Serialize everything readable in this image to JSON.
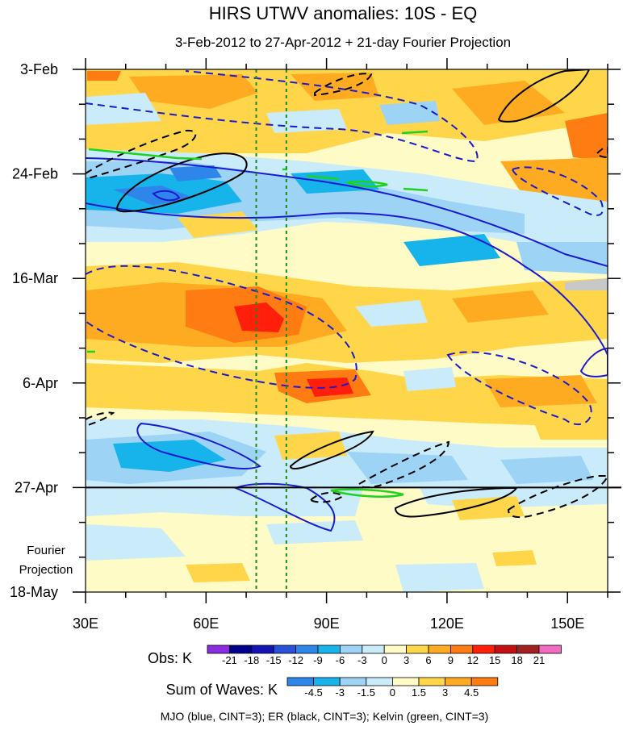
{
  "chart_data": {
    "type": "heatmap",
    "title": "HIRS UTWV anomalies: 10S - EQ",
    "subtitle": "3-Feb-2012 to 27-Apr-2012 + 21-day Fourier Projection",
    "x_axis": {
      "range": [
        30,
        160
      ],
      "major_ticks": [
        30,
        60,
        90,
        120,
        150
      ],
      "tick_labels": [
        "30E",
        "60E",
        "90E",
        "120E",
        "150E"
      ],
      "minor_step": 10
    },
    "y_axis": {
      "range_days": [
        0,
        105
      ],
      "reversed": true,
      "major_ticks_days": [
        0,
        21,
        42,
        63,
        84,
        105
      ],
      "tick_labels": [
        "3-Feb",
        "24-Feb",
        "16-Mar",
        "6-Apr",
        "27-Apr",
        "18-May"
      ],
      "minor_step_days": 7
    },
    "observation_end_label": "27-Apr",
    "projection_label": [
      "Fourier",
      "Projection"
    ],
    "reference_longitudes": [
      72.5,
      80
    ],
    "colorbars": [
      {
        "label": "Obs: K",
        "levels": [
          -21,
          -18,
          -15,
          -12,
          -9,
          -6,
          -3,
          0,
          3,
          6,
          9,
          12,
          15,
          18,
          21
        ],
        "colors": [
          "#8b2be2",
          "#00008b",
          "#1414b4",
          "#2850d8",
          "#2f86ea",
          "#17b4ec",
          "#9dd3f5",
          "#c9ebfa",
          "#fffbc7",
          "#ffd64a",
          "#ffab22",
          "#ff7c12",
          "#ff1f0a",
          "#c41010",
          "#a2201f",
          "#f16bc3"
        ]
      },
      {
        "label": "Sum of Waves: K",
        "levels": [
          -4.5,
          -3,
          -1.5,
          0,
          1.5,
          3,
          4.5
        ],
        "colors": [
          "#2f86ea",
          "#17b4ec",
          "#9dd3f5",
          "#c9ebfa",
          "#fffbc7",
          "#ffd64a",
          "#ffab22",
          "#ff7c12"
        ]
      }
    ],
    "legend_note": "MJO (blue, CINT=3); ER (black, CINT=3); Kelvin (green, CINT=3)",
    "wave_contours": {
      "MJO": {
        "color": "#1a1ad0",
        "solid": "positive",
        "dashed": "negative"
      },
      "ER": {
        "color": "#000000",
        "solid": "positive",
        "dashed": "negative"
      },
      "Kelvin": {
        "color": "#1ed21e",
        "solid": "positive"
      }
    },
    "anomaly_features": [
      {
        "lon": [
          30,
          160
        ],
        "days": [
          0,
          20
        ],
        "value": 4,
        "pattern": "mixed warm band"
      },
      {
        "lon": [
          30,
          110
        ],
        "days": [
          22,
          40
        ],
        "value": -8,
        "pattern": "negative band"
      },
      {
        "lon": [
          30,
          140
        ],
        "days": [
          40,
          58
        ],
        "value": 9,
        "peak_value": 14,
        "peak_lon": 72,
        "peak_day": 52
      },
      {
        "lon": [
          85,
          105
        ],
        "days": [
          60,
          68
        ],
        "value": 14,
        "peak_value": 16
      },
      {
        "lon": [
          30,
          110
        ],
        "days": [
          70,
          84
        ],
        "value": -7,
        "pattern": "negative band"
      },
      {
        "lon": [
          30,
          160
        ],
        "days": [
          84,
          105
        ],
        "value": 1,
        "pattern": "weak projection"
      }
    ]
  }
}
